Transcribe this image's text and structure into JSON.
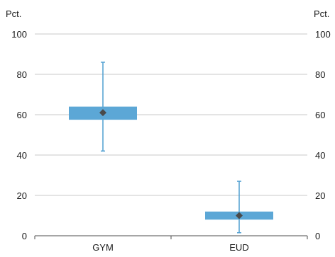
{
  "chart_data": {
    "type": "box",
    "unit_left": "Pct.",
    "unit_right": "Pct.",
    "ylim": [
      0,
      100
    ],
    "yticks": [
      0,
      20,
      40,
      60,
      80,
      100
    ],
    "grid": true,
    "categories": [
      "GYM",
      "EUD"
    ],
    "boxes": [
      {
        "category": "GYM",
        "min": 42,
        "q1": 57.5,
        "q3": 64,
        "max": 86,
        "mean": 61
      },
      {
        "category": "EUD",
        "min": 1.5,
        "q1": 8,
        "q3": 12,
        "max": 27,
        "mean": 10
      }
    ]
  },
  "colors": {
    "box": "#5ca7d6",
    "whisker": "#4f9fd1",
    "mean_marker": "#4a4a4a",
    "gridline": "#c9c9c9",
    "axis": "#4d4d4d"
  }
}
